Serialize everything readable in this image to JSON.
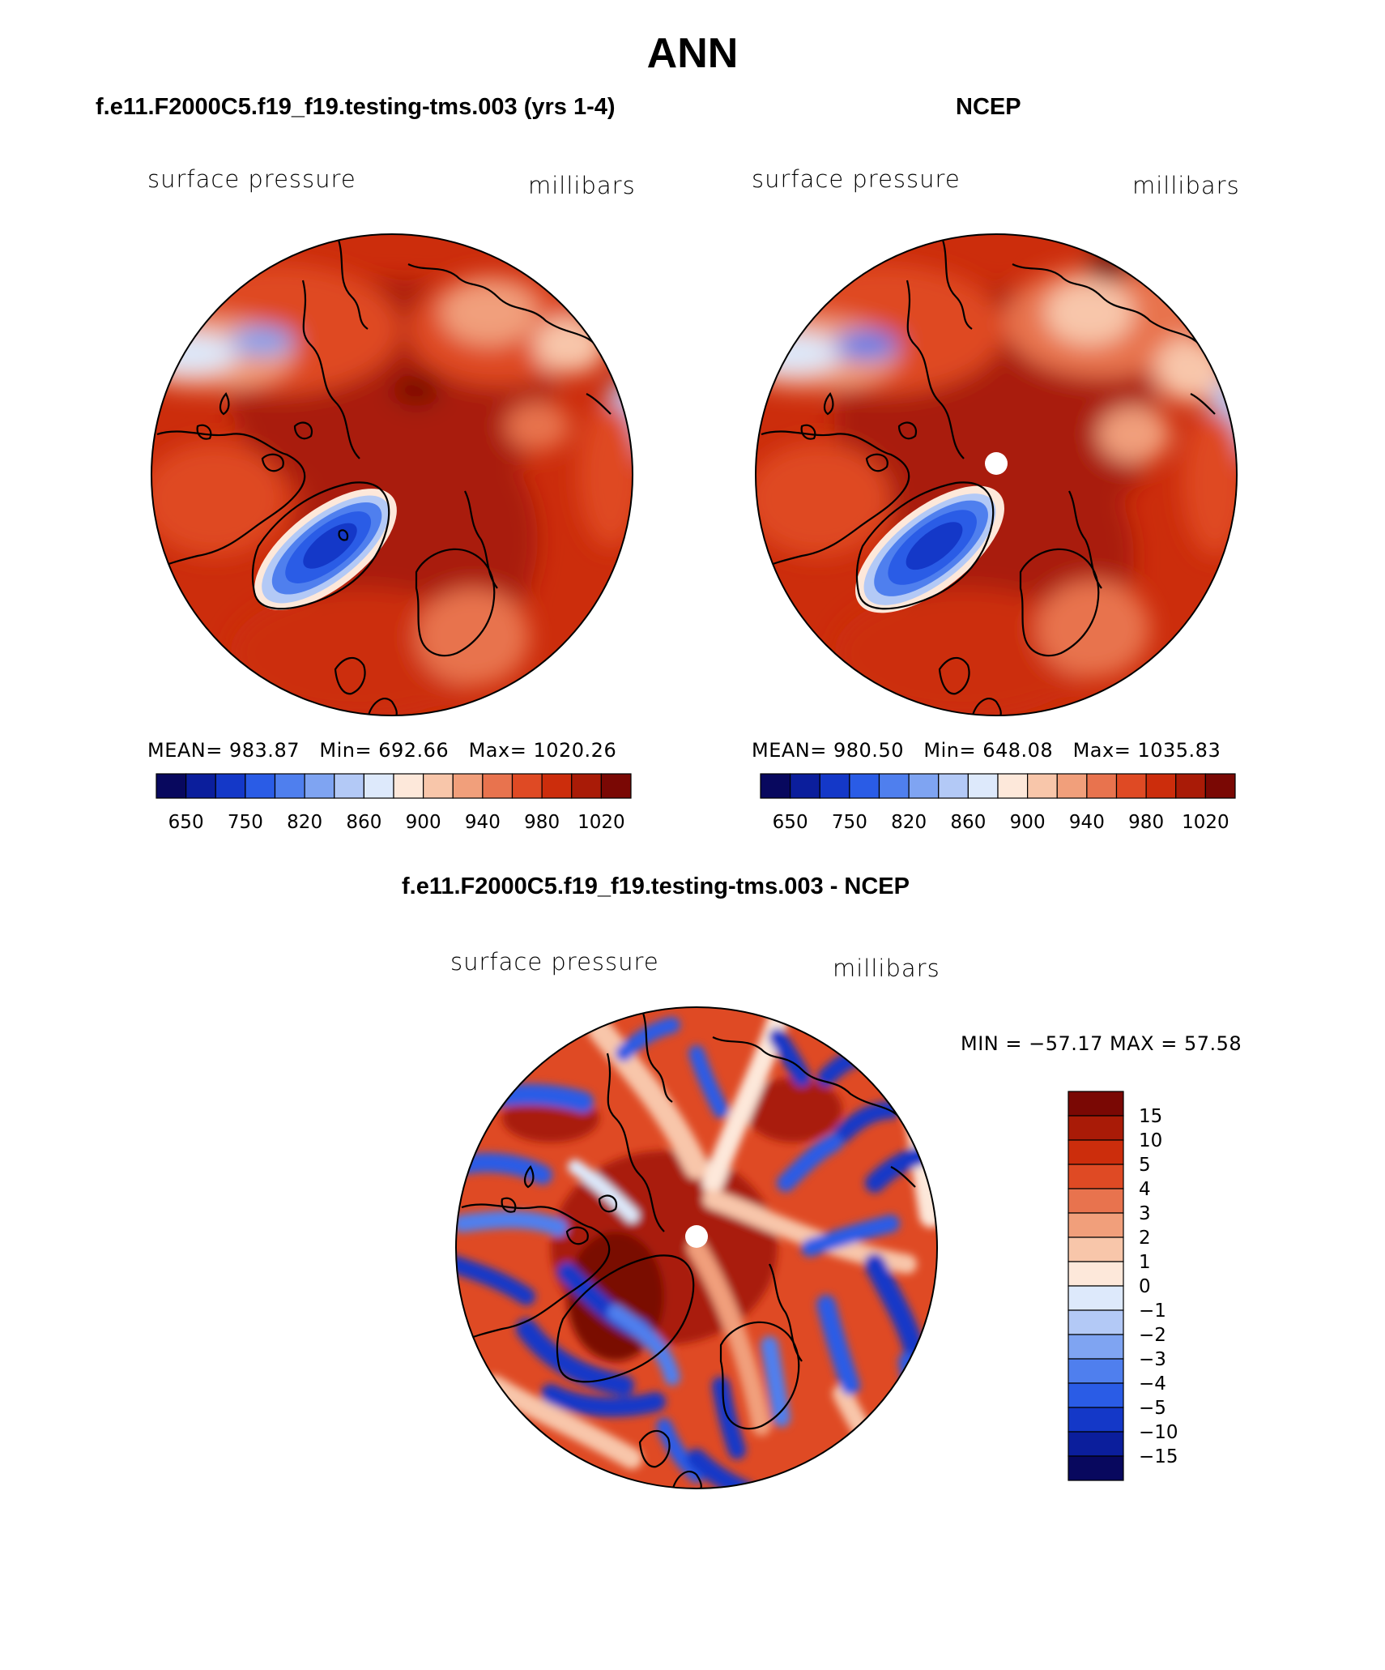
{
  "figure": {
    "title": "ANN"
  },
  "panels": [
    {
      "id": "model",
      "title": "f.e11.F2000C5.f19_f19.testing-tms.003 (yrs 1-4)",
      "left_label": "surface pressure",
      "right_label": "millibars",
      "stats": {
        "mean_label": "MEAN=",
        "mean": "983.87",
        "min_label": "Min=",
        "min": "692.66",
        "max_label": "Max=",
        "max": "1020.26"
      },
      "colorbar_ticks": [
        "650",
        "750",
        "820",
        "860",
        "900",
        "940",
        "980",
        "1020"
      ]
    },
    {
      "id": "obs",
      "title": "NCEP",
      "left_label": "surface pressure",
      "right_label": "millibars",
      "stats": {
        "mean_label": "MEAN=",
        "mean": "980.50",
        "min_label": "Min=",
        "min": "648.08",
        "max_label": "Max=",
        "max": "1035.83"
      },
      "colorbar_ticks": [
        "650",
        "750",
        "820",
        "860",
        "900",
        "940",
        "980",
        "1020"
      ]
    },
    {
      "id": "diff",
      "title": "f.e11.F2000C5.f19_f19.testing-tms.003 - NCEP",
      "left_label": "surface pressure",
      "right_label": "millibars",
      "minmax": "MIN = −57.17 MAX =  57.58",
      "colorbar_ticks": [
        "15",
        "10",
        "5",
        "4",
        "3",
        "2",
        "1",
        "0",
        "−1",
        "−2",
        "−3",
        "−4",
        "−5",
        "−10",
        "−15"
      ]
    }
  ],
  "colors": {
    "abs_scale": [
      "#08085e",
      "#0b1e9c",
      "#1438c8",
      "#2a5ce6",
      "#4f7fee",
      "#7fa4f2",
      "#b3c9f6",
      "#dde9fb",
      "#fde8da",
      "#f8c6aa",
      "#f19f7b",
      "#e8734e",
      "#df4a24",
      "#cc2d0c",
      "#a91b07",
      "#7a0804"
    ],
    "diff_scale": [
      "#7a0804",
      "#a91b07",
      "#cc2d0c",
      "#df4a24",
      "#e8734e",
      "#f19f7b",
      "#f8c6aa",
      "#fde8da",
      "#dde9fb",
      "#b3c9f6",
      "#7fa4f2",
      "#4f7fee",
      "#2a5ce6",
      "#1438c8",
      "#0b1e9c",
      "#08085e"
    ]
  }
}
